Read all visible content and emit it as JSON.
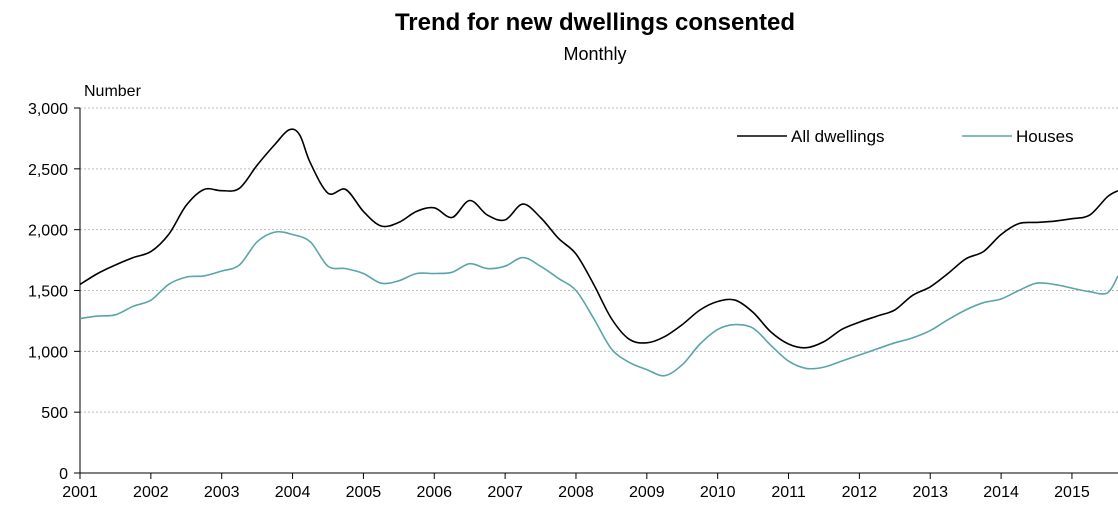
{
  "chart_data": {
    "type": "line",
    "title": "Trend for new dwellings consented",
    "subtitle": "Monthly",
    "ylabel": "Number",
    "xlabel": "",
    "ylim": [
      0,
      3000
    ],
    "xlim": [
      2001.0,
      2015.65
    ],
    "yticks": [
      0,
      500,
      1000,
      1500,
      2000,
      2500,
      3000
    ],
    "ytick_labels": [
      "0",
      "500",
      "1,000",
      "1,500",
      "2,000",
      "2,500",
      "3,000"
    ],
    "xtick_labels": [
      "2001",
      "2002",
      "2003",
      "2004",
      "2005",
      "2006",
      "2007",
      "2008",
      "2009",
      "2010",
      "2011",
      "2012",
      "2013",
      "2014",
      "2015"
    ],
    "grid": "horizontal dashed",
    "legend_position": "top-right",
    "series": [
      {
        "name": "All dwellings",
        "color": "#000000",
        "x": [
          2001.0,
          2001.25,
          2001.5,
          2001.75,
          2002.0,
          2002.25,
          2002.5,
          2002.75,
          2003.0,
          2003.25,
          2003.5,
          2003.75,
          2003.95,
          2004.1,
          2004.25,
          2004.5,
          2004.75,
          2005.0,
          2005.25,
          2005.5,
          2005.75,
          2006.0,
          2006.25,
          2006.5,
          2006.75,
          2007.0,
          2007.25,
          2007.5,
          2007.75,
          2008.0,
          2008.25,
          2008.5,
          2008.75,
          2009.0,
          2009.25,
          2009.5,
          2009.75,
          2010.0,
          2010.25,
          2010.5,
          2010.75,
          2011.0,
          2011.25,
          2011.5,
          2011.75,
          2012.0,
          2012.25,
          2012.5,
          2012.75,
          2013.0,
          2013.25,
          2013.5,
          2013.75,
          2014.0,
          2014.25,
          2014.5,
          2014.75,
          2015.0,
          2015.25,
          2015.5,
          2015.65
        ],
        "y": [
          1550,
          1640,
          1710,
          1770,
          1820,
          1960,
          2200,
          2330,
          2320,
          2340,
          2530,
          2700,
          2820,
          2780,
          2550,
          2300,
          2330,
          2150,
          2030,
          2060,
          2150,
          2180,
          2100,
          2240,
          2120,
          2080,
          2210,
          2100,
          1930,
          1800,
          1550,
          1270,
          1100,
          1070,
          1120,
          1220,
          1340,
          1410,
          1420,
          1320,
          1160,
          1060,
          1030,
          1080,
          1180,
          1240,
          1290,
          1340,
          1460,
          1530,
          1640,
          1760,
          1820,
          1960,
          2050,
          2060,
          2070,
          2090,
          2120,
          2270,
          2320
        ]
      },
      {
        "name": "Houses",
        "color": "#5aa5a8",
        "x": [
          2001.0,
          2001.25,
          2001.5,
          2001.75,
          2002.0,
          2002.25,
          2002.5,
          2002.75,
          2003.0,
          2003.25,
          2003.5,
          2003.75,
          2004.0,
          2004.25,
          2004.5,
          2004.75,
          2005.0,
          2005.25,
          2005.5,
          2005.75,
          2006.0,
          2006.25,
          2006.5,
          2006.75,
          2007.0,
          2007.25,
          2007.5,
          2007.75,
          2008.0,
          2008.25,
          2008.5,
          2008.75,
          2009.0,
          2009.25,
          2009.5,
          2009.75,
          2010.0,
          2010.25,
          2010.5,
          2010.75,
          2011.0,
          2011.25,
          2011.5,
          2011.75,
          2012.0,
          2012.25,
          2012.5,
          2012.75,
          2013.0,
          2013.25,
          2013.5,
          2013.75,
          2014.0,
          2014.25,
          2014.5,
          2014.75,
          2015.0,
          2015.25,
          2015.5,
          2015.65
        ],
        "y": [
          1270,
          1290,
          1300,
          1370,
          1420,
          1550,
          1610,
          1620,
          1660,
          1710,
          1900,
          1980,
          1960,
          1900,
          1700,
          1680,
          1640,
          1560,
          1580,
          1640,
          1640,
          1650,
          1720,
          1680,
          1700,
          1770,
          1700,
          1600,
          1500,
          1270,
          1020,
          910,
          850,
          800,
          890,
          1060,
          1180,
          1220,
          1190,
          1050,
          920,
          860,
          870,
          920,
          970,
          1020,
          1070,
          1110,
          1170,
          1260,
          1340,
          1400,
          1430,
          1500,
          1560,
          1550,
          1520,
          1490,
          1480,
          1620
        ]
      }
    ]
  }
}
